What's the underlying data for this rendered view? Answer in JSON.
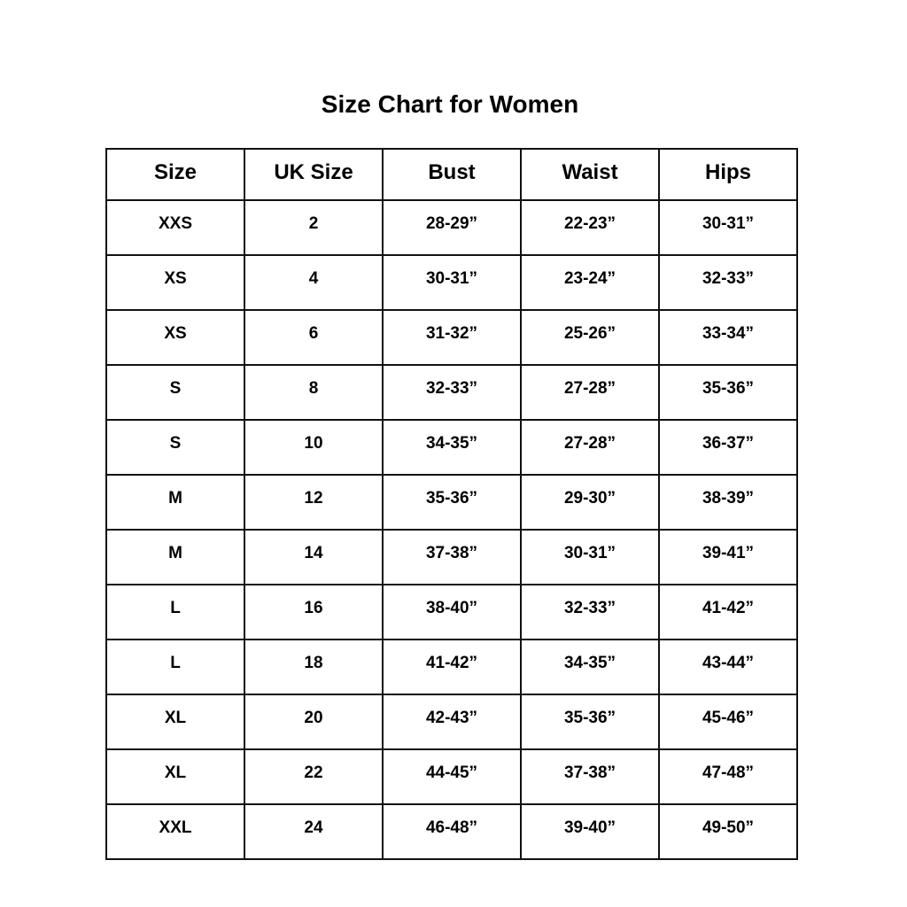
{
  "title": "Size Chart for Women",
  "headers": [
    "Size",
    "UK Size",
    "Bust",
    "Waist",
    "Hips"
  ],
  "rows": [
    [
      "XXS",
      "2",
      "28-29”",
      "22-23”",
      "30-31”"
    ],
    [
      "XS",
      "4",
      "30-31”",
      "23-24”",
      "32-33”"
    ],
    [
      "XS",
      "6",
      "31-32”",
      "25-26”",
      "33-34”"
    ],
    [
      "S",
      "8",
      "32-33”",
      "27-28”",
      "35-36”"
    ],
    [
      "S",
      "10",
      "34-35”",
      "27-28”",
      "36-37”"
    ],
    [
      "M",
      "12",
      "35-36”",
      "29-30”",
      "38-39”"
    ],
    [
      "M",
      "14",
      "37-38”",
      "30-31”",
      "39-41”"
    ],
    [
      "L",
      "16",
      "38-40”",
      "32-33”",
      "41-42”"
    ],
    [
      "L",
      "18",
      "41-42”",
      "34-35”",
      "43-44”"
    ],
    [
      "XL",
      "20",
      "42-43”",
      "35-36”",
      "45-46”"
    ],
    [
      "XL",
      "22",
      "44-45”",
      "37-38”",
      "47-48”"
    ],
    [
      "XXL",
      "24",
      "46-48”",
      "39-40”",
      "49-50”"
    ]
  ]
}
